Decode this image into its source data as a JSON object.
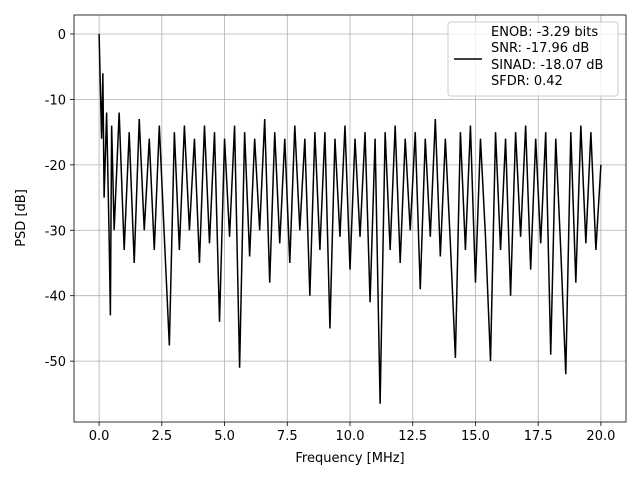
{
  "chart_data": {
    "type": "line",
    "xlabel": "Frequency [MHz]",
    "ylabel": "PSD [dB]",
    "x": [
      0,
      0.05,
      0.1,
      0.15,
      0.2,
      0.3,
      0.4,
      0.45,
      0.5,
      0.6,
      0.8,
      1.0,
      1.2,
      1.4,
      1.6,
      1.8,
      2.0,
      2.2,
      2.4,
      2.6,
      2.8,
      3.0,
      3.2,
      3.4,
      3.6,
      3.8,
      4.0,
      4.2,
      4.4,
      4.6,
      4.8,
      5.0,
      5.2,
      5.4,
      5.6,
      5.8,
      6.0,
      6.2,
      6.4,
      6.6,
      6.8,
      7.0,
      7.2,
      7.4,
      7.6,
      7.8,
      8.0,
      8.2,
      8.4,
      8.6,
      8.8,
      9.0,
      9.2,
      9.4,
      9.6,
      9.8,
      10.0,
      10.2,
      10.4,
      10.6,
      10.8,
      11.0,
      11.2,
      11.4,
      11.6,
      11.8,
      12.0,
      12.2,
      12.4,
      12.6,
      12.8,
      13.0,
      13.2,
      13.4,
      13.6,
      13.8,
      14.0,
      14.2,
      14.4,
      14.6,
      14.8,
      15.0,
      15.2,
      15.4,
      15.6,
      15.8,
      16.0,
      16.2,
      16.4,
      16.6,
      16.8,
      17.0,
      17.2,
      17.4,
      17.6,
      17.8,
      18.0,
      18.2,
      18.4,
      18.6,
      18.8,
      19.0,
      19.2,
      19.4,
      19.6,
      19.8,
      20.0
    ],
    "series": [
      {
        "name": "ENOB: -3.29 bits\nSNR: -17.96 dB\nSINAD: -18.07 dB\nSFDR: 0.42",
        "color": "#000000",
        "values": [
          0,
          -8,
          -16,
          -6,
          -25,
          -12,
          -31,
          -43,
          -14,
          -30,
          -12,
          -33,
          -15,
          -35,
          -13,
          -30,
          -16,
          -33,
          -14,
          -31,
          -47.6,
          -15,
          -33,
          -14,
          -30,
          -16,
          -35,
          -14,
          -32,
          -15,
          -44,
          -16,
          -31,
          -14,
          -51,
          -15,
          -34,
          -16,
          -30,
          -13,
          -38,
          -15,
          -32,
          -16,
          -35,
          -14,
          -30,
          -16,
          -40,
          -15,
          -33,
          -15,
          -45,
          -16,
          -31,
          -14,
          -36,
          -16,
          -31,
          -15,
          -41,
          -16,
          -56.5,
          -15,
          -33,
          -14,
          -35,
          -16,
          -30,
          -15,
          -39,
          -16,
          -31,
          -13,
          -34,
          -16,
          -32,
          -49.5,
          -15,
          -33,
          -14,
          -38,
          -16,
          -31,
          -50,
          -15,
          -33,
          -16,
          -40,
          -15,
          -31,
          -14,
          -36,
          -16,
          -32,
          -15,
          -49,
          -16,
          -33,
          -52,
          -15,
          -38,
          -14,
          -32,
          -15,
          -33,
          -20
        ]
      }
    ],
    "xlim": [
      -1,
      21
    ],
    "ylim": [
      -59.3,
      2.9
    ],
    "xticks": [
      {
        "value": 0,
        "label": "0.0"
      },
      2.5,
      {
        "value": 5,
        "label": "5.0"
      },
      7.5,
      {
        "value": 10,
        "label": "10.0"
      },
      12.5,
      {
        "value": 15,
        "label": "15.0"
      },
      17.5,
      {
        "value": 20,
        "label": "20.0"
      }
    ],
    "yticks": [
      0,
      -10,
      -20,
      -30,
      -40,
      -50
    ],
    "grid": true,
    "legend": "upper right"
  }
}
